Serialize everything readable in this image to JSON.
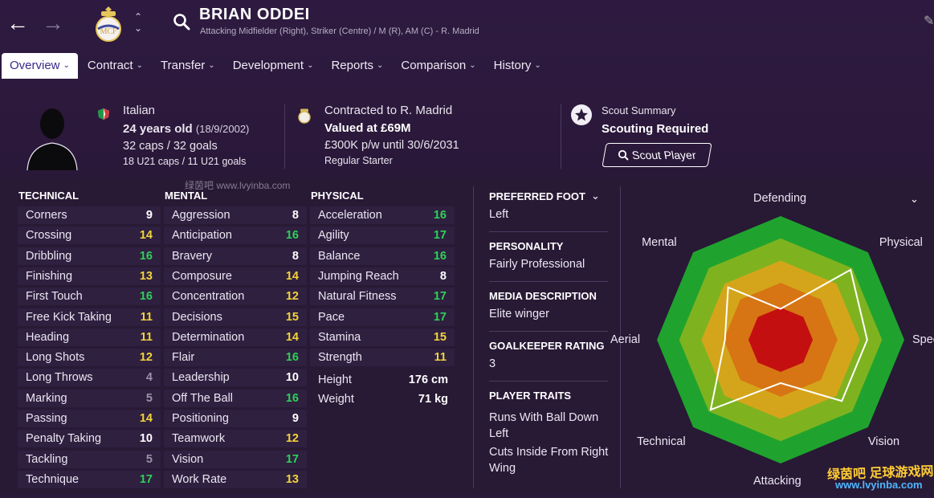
{
  "header": {
    "player_name": "BRIAN ODDEI",
    "positions": "Attacking Midfielder (Right), Striker (Centre) / M (R), AM (C) - R. Madrid"
  },
  "tabs": [
    {
      "label": "Overview",
      "active": true
    },
    {
      "label": "Contract"
    },
    {
      "label": "Transfer"
    },
    {
      "label": "Development"
    },
    {
      "label": "Reports"
    },
    {
      "label": "Comparison"
    },
    {
      "label": "History"
    }
  ],
  "profile": {
    "nationality": "Italian",
    "age": "24 years old",
    "dob": "(18/9/2002)",
    "caps": "32 caps / 32 goals",
    "u21": "18 U21 caps / 11 U21 goals"
  },
  "contract": {
    "club": "Contracted to R. Madrid",
    "value": "Valued at £69M",
    "wage": "£300K p/w until 30/6/2031",
    "status": "Regular Starter"
  },
  "scout": {
    "title": "Scout Summary",
    "status": "Scouting Required",
    "button": "Scout Player"
  },
  "columns": {
    "technical": "TECHNICAL",
    "mental": "MENTAL",
    "physical": "PHYSICAL"
  },
  "technical": [
    {
      "name": "Corners",
      "value": 9
    },
    {
      "name": "Crossing",
      "value": 14
    },
    {
      "name": "Dribbling",
      "value": 16
    },
    {
      "name": "Finishing",
      "value": 13
    },
    {
      "name": "First Touch",
      "value": 16
    },
    {
      "name": "Free Kick Taking",
      "value": 11
    },
    {
      "name": "Heading",
      "value": 11
    },
    {
      "name": "Long Shots",
      "value": 12
    },
    {
      "name": "Long Throws",
      "value": 4
    },
    {
      "name": "Marking",
      "value": 5
    },
    {
      "name": "Passing",
      "value": 14
    },
    {
      "name": "Penalty Taking",
      "value": 10
    },
    {
      "name": "Tackling",
      "value": 5
    },
    {
      "name": "Technique",
      "value": 17
    }
  ],
  "mental": [
    {
      "name": "Aggression",
      "value": 8
    },
    {
      "name": "Anticipation",
      "value": 16
    },
    {
      "name": "Bravery",
      "value": 8
    },
    {
      "name": "Composure",
      "value": 14
    },
    {
      "name": "Concentration",
      "value": 12
    },
    {
      "name": "Decisions",
      "value": 15
    },
    {
      "name": "Determination",
      "value": 14
    },
    {
      "name": "Flair",
      "value": 16
    },
    {
      "name": "Leadership",
      "value": 10
    },
    {
      "name": "Off The Ball",
      "value": 16
    },
    {
      "name": "Positioning",
      "value": 9
    },
    {
      "name": "Teamwork",
      "value": 12
    },
    {
      "name": "Vision",
      "value": 17
    },
    {
      "name": "Work Rate",
      "value": 13
    }
  ],
  "physical": [
    {
      "name": "Acceleration",
      "value": 16
    },
    {
      "name": "Agility",
      "value": 17
    },
    {
      "name": "Balance",
      "value": 16
    },
    {
      "name": "Jumping Reach",
      "value": 8
    },
    {
      "name": "Natural Fitness",
      "value": 17
    },
    {
      "name": "Pace",
      "value": 17
    },
    {
      "name": "Stamina",
      "value": 15
    },
    {
      "name": "Strength",
      "value": 11
    }
  ],
  "measures": [
    {
      "name": "Height",
      "value": "176 cm"
    },
    {
      "name": "Weight",
      "value": "71 kg"
    }
  ],
  "side": {
    "foot_label": "PREFERRED FOOT",
    "foot_value": "Left",
    "personality_label": "PERSONALITY",
    "personality_value": "Fairly Professional",
    "media_label": "MEDIA DESCRIPTION",
    "media_value": "Elite winger",
    "gk_label": "GOALKEEPER RATING",
    "gk_value": "3",
    "traits_label": "PLAYER TRAITS",
    "traits": [
      "Runs With Ball Down Left",
      "Cuts Inside From Right Wing"
    ]
  },
  "radar": {
    "axes": [
      "Defending",
      "Physical",
      "Speed",
      "Vision",
      "Attacking",
      "Technical",
      "Aerial",
      "Mental"
    ],
    "values": [
      0.25,
      0.8,
      0.7,
      0.7,
      0.35,
      0.8,
      0.45,
      0.6
    ]
  },
  "watermarks": {
    "site": "绿茵吧 www.lvyinba.com",
    "brand": "绿茵吧 足球游戏网",
    "url": "www.lvyinba.com"
  },
  "colors": {
    "high": "#2ed158",
    "mid": "#f2d43a",
    "low": "#9d92aa",
    "normal": "#ffffff"
  }
}
